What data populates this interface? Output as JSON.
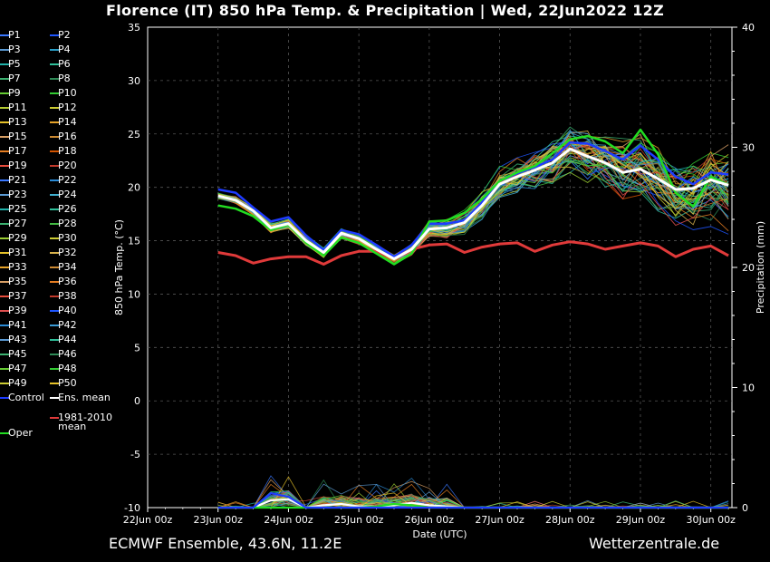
{
  "header": {
    "title": "Florence  (IT)  850 hPa Temp. & Precipitation | Wed, 22Jun2022 12Z"
  },
  "footer": {
    "left": "ECMWF Ensemble, 43.6N, 11.2E",
    "right": "Wetterzentrale.de"
  },
  "legend": {
    "items": [
      {
        "label": "P1",
        "color": "#3a78ff"
      },
      {
        "label": "P2",
        "color": "#1e56ff"
      },
      {
        "label": "P3",
        "color": "#5b9bd5"
      },
      {
        "label": "P4",
        "color": "#2aa0c8"
      },
      {
        "label": "P5",
        "color": "#20b2aa"
      },
      {
        "label": "P6",
        "color": "#2fc09a"
      },
      {
        "label": "P7",
        "color": "#3cb371"
      },
      {
        "label": "P8",
        "color": "#2e8b57"
      },
      {
        "label": "P9",
        "color": "#66cc33"
      },
      {
        "label": "P10",
        "color": "#33cc33"
      },
      {
        "label": "P11",
        "color": "#b5cc33"
      },
      {
        "label": "P12",
        "color": "#cccc33"
      },
      {
        "label": "P13",
        "color": "#e6c229"
      },
      {
        "label": "P14",
        "color": "#e6a329"
      },
      {
        "label": "P15",
        "color": "#d9a066"
      },
      {
        "label": "P16",
        "color": "#cc8a33"
      },
      {
        "label": "P17",
        "color": "#e67e22"
      },
      {
        "label": "P18",
        "color": "#d35400"
      },
      {
        "label": "P19",
        "color": "#e74c3c"
      },
      {
        "label": "P20",
        "color": "#c0392b"
      },
      {
        "label": "P21",
        "color": "#3a78ff"
      },
      {
        "label": "P22",
        "color": "#2a8ad5"
      },
      {
        "label": "P23",
        "color": "#5b9bd5"
      },
      {
        "label": "P24",
        "color": "#40b0d0"
      },
      {
        "label": "P25",
        "color": "#20b2aa"
      },
      {
        "label": "P26",
        "color": "#2fc09a"
      },
      {
        "label": "P27",
        "color": "#3cb371"
      },
      {
        "label": "P28",
        "color": "#44bb44"
      },
      {
        "label": "P29",
        "color": "#9acd32"
      },
      {
        "label": "P30",
        "color": "#cccc33"
      },
      {
        "label": "P31",
        "color": "#e6c229"
      },
      {
        "label": "P32",
        "color": "#d9b34d"
      },
      {
        "label": "P33",
        "color": "#e6a329"
      },
      {
        "label": "P34",
        "color": "#cc8a33"
      },
      {
        "label": "P35",
        "color": "#d9a066"
      },
      {
        "label": "P36",
        "color": "#e67e22"
      },
      {
        "label": "P37",
        "color": "#e74c3c"
      },
      {
        "label": "P38",
        "color": "#c0392b"
      },
      {
        "label": "P39",
        "color": "#e05050"
      },
      {
        "label": "P40",
        "color": "#1e56ff"
      },
      {
        "label": "P41",
        "color": "#2a8ad5"
      },
      {
        "label": "P42",
        "color": "#3a9ad5"
      },
      {
        "label": "P43",
        "color": "#5b9bd5"
      },
      {
        "label": "P44",
        "color": "#2fc09a"
      },
      {
        "label": "P45",
        "color": "#3cb371"
      },
      {
        "label": "P46",
        "color": "#2e8b57"
      },
      {
        "label": "P47",
        "color": "#66cc33"
      },
      {
        "label": "P48",
        "color": "#33cc33"
      },
      {
        "label": "P49",
        "color": "#cccc33"
      },
      {
        "label": "P50",
        "color": "#e6c229"
      }
    ],
    "control": {
      "label": "Control",
      "color": "#1e3cff"
    },
    "ens_mean": {
      "label": "Ens. mean",
      "color": "#ffffff"
    },
    "clim_mean": {
      "label1": "1981-2010",
      "label2": "mean",
      "color": "#e03a3a"
    },
    "oper": {
      "label": "Oper",
      "color": "#22dd22"
    }
  },
  "chart_data": {
    "type": "line",
    "title": "Florence  (IT)  850 hPa Temp. & Precipitation | Wed, 22Jun2022 12Z",
    "xlabel": "Date (UTC)",
    "ylabel": "850 hPa Temp. (°C)",
    "y2label": "Precipitation (mm)",
    "x_ticks": [
      "22Jun 00z",
      "23Jun 00z",
      "24Jun 00z",
      "25Jun 00z",
      "26Jun 00z",
      "27Jun 00z",
      "28Jun 00z",
      "29Jun 00z",
      "30Jun 00z"
    ],
    "y_ticks": [
      "35",
      "30",
      "25",
      "20",
      "15",
      "10",
      "5",
      "0",
      "-5",
      "-10"
    ],
    "y2_ticks": [
      "40",
      "30",
      "20",
      "10",
      "0"
    ],
    "ylim": [
      -10,
      35
    ],
    "y2lim": [
      0,
      40
    ],
    "xlim_days": [
      0,
      8.3
    ],
    "grid": true,
    "series": [
      {
        "name": "Ens. mean",
        "color": "#ffffff",
        "x": [
          1,
          1.25,
          1.5,
          1.75,
          2,
          2.25,
          2.5,
          2.75,
          3,
          3.25,
          3.5,
          3.75,
          4,
          4.25,
          4.5,
          4.75,
          5,
          5.25,
          5.5,
          5.75,
          6,
          6.25,
          6.5,
          6.75,
          7,
          7.25,
          7.5,
          7.75,
          8,
          8.25
        ],
        "values": [
          19.2,
          18.8,
          17.8,
          16.2,
          16.6,
          15.0,
          13.9,
          15.7,
          15.2,
          14.2,
          13.3,
          14.2,
          16.1,
          16.2,
          16.7,
          18.3,
          20.3,
          21.0,
          21.6,
          22.3,
          23.6,
          22.9,
          22.3,
          21.4,
          21.7,
          20.8,
          19.8,
          19.9,
          20.7,
          20.2
        ]
      },
      {
        "name": "Control",
        "color": "#1e3cff",
        "x": [
          1,
          1.25,
          1.5,
          1.75,
          2,
          2.25,
          2.5,
          2.75,
          3,
          3.25,
          3.5,
          3.75,
          4,
          4.25,
          4.5,
          4.75,
          5,
          5.25,
          5.5,
          5.75,
          6,
          6.25,
          6.5,
          6.75,
          7,
          7.25,
          7.5,
          7.75,
          8,
          8.25
        ],
        "values": [
          19.8,
          19.5,
          18.1,
          16.8,
          17.2,
          15.5,
          14.1,
          16.0,
          15.6,
          14.6,
          13.5,
          14.6,
          16.6,
          16.6,
          16.9,
          18.6,
          20.6,
          21.3,
          21.9,
          22.6,
          24.2,
          24.1,
          23.4,
          22.6,
          23.9,
          22.6,
          21.0,
          20.3,
          21.4,
          21.2
        ]
      },
      {
        "name": "Oper",
        "color": "#22dd22",
        "x": [
          1,
          1.25,
          1.5,
          1.75,
          2,
          2.25,
          2.5,
          2.75,
          3,
          3.25,
          3.5,
          3.75,
          4,
          4.25,
          4.5,
          4.75,
          5,
          5.25,
          5.5,
          5.75,
          6,
          6.25,
          6.5,
          6.75,
          7,
          7.25,
          7.5,
          7.75,
          8,
          8.25
        ],
        "values": [
          18.3,
          18.0,
          17.3,
          16.0,
          16.5,
          14.8,
          13.6,
          15.3,
          14.8,
          13.8,
          12.8,
          13.8,
          16.8,
          16.9,
          17.6,
          18.9,
          20.6,
          21.4,
          22.0,
          23.2,
          24.5,
          24.8,
          24.3,
          23.2,
          25.4,
          23.1,
          19.5,
          18.2,
          21.0,
          20.2
        ]
      },
      {
        "name": "1981-2010 mean",
        "color": "#e03a3a",
        "x": [
          1,
          1.25,
          1.5,
          1.75,
          2,
          2.25,
          2.5,
          2.75,
          3,
          3.25,
          3.5,
          3.75,
          4,
          4.25,
          4.5,
          4.75,
          5,
          5.25,
          5.5,
          5.75,
          6,
          6.25,
          6.5,
          6.75,
          7,
          7.25,
          7.5,
          7.75,
          8,
          8.25
        ],
        "values": [
          13.9,
          13.6,
          12.9,
          13.3,
          13.5,
          13.5,
          12.8,
          13.6,
          14.0,
          14.0,
          13.4,
          14.2,
          14.6,
          14.7,
          13.9,
          14.4,
          14.7,
          14.8,
          14.0,
          14.6,
          14.9,
          14.7,
          14.2,
          14.5,
          14.8,
          14.5,
          13.5,
          14.2,
          14.5,
          13.6
        ]
      }
    ],
    "precip_series": [
      {
        "name": "Ens. mean",
        "color": "#ffffff",
        "x": [
          1,
          1.25,
          1.5,
          1.75,
          2,
          2.25,
          2.5,
          2.75,
          3,
          3.25,
          3.5,
          3.75,
          4,
          4.25,
          4.5,
          4.75,
          5,
          5.25,
          5.5,
          5.75,
          6,
          6.25,
          6.5,
          6.75,
          7,
          7.25,
          7.5,
          7.75,
          8,
          8.25
        ],
        "values": [
          0,
          0,
          0,
          0.6,
          0.7,
          0,
          0.2,
          0.3,
          0.1,
          0.1,
          0.2,
          0.4,
          0.2,
          0.1,
          0,
          0,
          0,
          0,
          0,
          0,
          0,
          0,
          0,
          0,
          0,
          0,
          0,
          0,
          0,
          0
        ]
      },
      {
        "name": "Oper",
        "color": "#22dd22",
        "x": [
          1,
          1.25,
          1.5,
          1.75,
          2,
          2.25,
          2.5,
          2.75,
          3,
          3.25,
          3.5,
          3.75,
          4,
          4.25,
          4.5,
          4.75,
          5,
          5.25,
          5.5,
          5.75,
          6,
          6.25,
          6.5,
          6.75,
          7,
          7.25,
          7.5,
          7.75,
          8,
          8.25
        ],
        "values": [
          0,
          0,
          0,
          0,
          0,
          0,
          0,
          0,
          0,
          0.1,
          0.3,
          0.2,
          0,
          0,
          0,
          0,
          0,
          0,
          0,
          0,
          0,
          0,
          0,
          0,
          0,
          0,
          0,
          0,
          0,
          0
        ]
      },
      {
        "name": "Control",
        "color": "#1e3cff",
        "x": [
          1,
          1.25,
          1.5,
          1.75,
          2,
          2.25,
          2.5,
          2.75,
          3,
          3.25,
          3.5,
          3.75,
          4,
          4.25,
          4.5,
          4.75,
          5,
          5.25,
          5.5,
          5.75,
          6,
          6.25,
          6.5,
          6.75,
          7,
          7.25,
          7.5,
          7.75,
          8,
          8.25
        ],
        "values": [
          0,
          0,
          0,
          1.2,
          0.9,
          0,
          0,
          0,
          0,
          0,
          0,
          0,
          0,
          0,
          0,
          0,
          0,
          0,
          0,
          0,
          0,
          0,
          0,
          0,
          0,
          0,
          0,
          0,
          0,
          0
        ]
      }
    ]
  }
}
